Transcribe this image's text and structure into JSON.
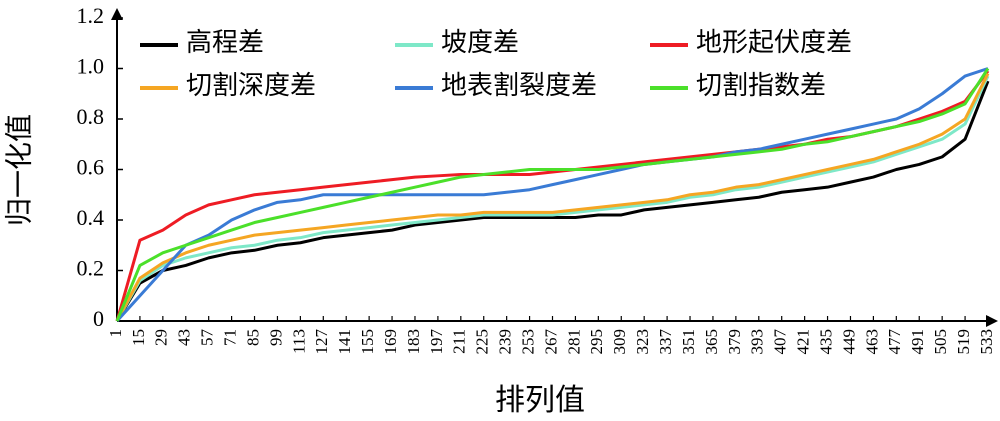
{
  "chart_data": {
    "type": "line",
    "xlabel": "排列值",
    "ylabel": "归一化值",
    "categories": [
      "1",
      "15",
      "29",
      "43",
      "57",
      "71",
      "85",
      "99",
      "113",
      "127",
      "141",
      "155",
      "169",
      "183",
      "197",
      "211",
      "225",
      "239",
      "253",
      "267",
      "281",
      "295",
      "309",
      "323",
      "337",
      "351",
      "365",
      "379",
      "393",
      "407",
      "421",
      "435",
      "449",
      "463",
      "477",
      "491",
      "505",
      "519",
      "533"
    ],
    "ylim": [
      0,
      1.2
    ],
    "yticks": [
      0,
      0.2,
      0.4,
      0.6,
      0.8,
      {
        "value": 1,
        "label": "1.0"
      },
      1.2
    ],
    "grid": false,
    "series": [
      {
        "name": "高程差",
        "color": "#000000",
        "values": [
          0,
          0.15,
          0.2,
          0.22,
          0.25,
          0.27,
          0.28,
          0.3,
          0.31,
          0.33,
          0.34,
          0.35,
          0.36,
          0.38,
          0.39,
          0.4,
          0.41,
          0.41,
          0.41,
          0.41,
          0.41,
          0.42,
          0.42,
          0.44,
          0.45,
          0.46,
          0.47,
          0.48,
          0.49,
          0.51,
          0.52,
          0.53,
          0.55,
          0.57,
          0.6,
          0.62,
          0.65,
          0.72,
          0.95
        ]
      },
      {
        "name": "坡度差",
        "color": "#7ee8c8",
        "values": [
          0,
          0.16,
          0.22,
          0.25,
          0.27,
          0.29,
          0.3,
          0.32,
          0.33,
          0.35,
          0.36,
          0.37,
          0.38,
          0.39,
          0.4,
          0.41,
          0.42,
          0.42,
          0.42,
          0.42,
          0.43,
          0.44,
          0.45,
          0.46,
          0.47,
          0.49,
          0.5,
          0.52,
          0.53,
          0.55,
          0.57,
          0.59,
          0.61,
          0.63,
          0.66,
          0.69,
          0.72,
          0.78,
          0.97
        ]
      },
      {
        "name": "地形起伏度差",
        "color": "#ee1c24",
        "values": [
          0,
          0.32,
          0.36,
          0.42,
          0.46,
          0.48,
          0.5,
          0.51,
          0.52,
          0.53,
          0.54,
          0.55,
          0.56,
          0.57,
          0.575,
          0.58,
          0.58,
          0.58,
          0.58,
          0.59,
          0.6,
          0.61,
          0.62,
          0.63,
          0.64,
          0.65,
          0.66,
          0.67,
          0.68,
          0.69,
          0.7,
          0.72,
          0.73,
          0.75,
          0.77,
          0.8,
          0.83,
          0.87,
          0.99
        ]
      },
      {
        "name": "切割深度差",
        "color": "#f5a623",
        "values": [
          0,
          0.17,
          0.23,
          0.27,
          0.3,
          0.32,
          0.34,
          0.35,
          0.36,
          0.37,
          0.38,
          0.39,
          0.4,
          0.41,
          0.42,
          0.42,
          0.43,
          0.43,
          0.43,
          0.43,
          0.44,
          0.45,
          0.46,
          0.47,
          0.48,
          0.5,
          0.51,
          0.53,
          0.54,
          0.56,
          0.58,
          0.6,
          0.62,
          0.64,
          0.67,
          0.7,
          0.74,
          0.8,
          0.98
        ]
      },
      {
        "name": "地表割裂度差",
        "color": "#3a7bd5",
        "values": [
          0,
          0.1,
          0.2,
          0.3,
          0.34,
          0.4,
          0.44,
          0.47,
          0.48,
          0.5,
          0.5,
          0.5,
          0.5,
          0.5,
          0.5,
          0.5,
          0.5,
          0.51,
          0.52,
          0.54,
          0.56,
          0.58,
          0.6,
          0.62,
          0.63,
          0.64,
          0.65,
          0.67,
          0.68,
          0.7,
          0.72,
          0.74,
          0.76,
          0.78,
          0.8,
          0.84,
          0.9,
          0.97,
          1.0
        ]
      },
      {
        "name": "切割指数差",
        "color": "#4be02a",
        "values": [
          0,
          0.22,
          0.27,
          0.3,
          0.33,
          0.36,
          0.39,
          0.41,
          0.43,
          0.45,
          0.47,
          0.49,
          0.51,
          0.53,
          0.55,
          0.57,
          0.58,
          0.59,
          0.6,
          0.6,
          0.6,
          0.6,
          0.61,
          0.62,
          0.63,
          0.64,
          0.65,
          0.66,
          0.67,
          0.68,
          0.7,
          0.71,
          0.73,
          0.75,
          0.77,
          0.79,
          0.82,
          0.86,
          1.0
        ]
      }
    ]
  }
}
